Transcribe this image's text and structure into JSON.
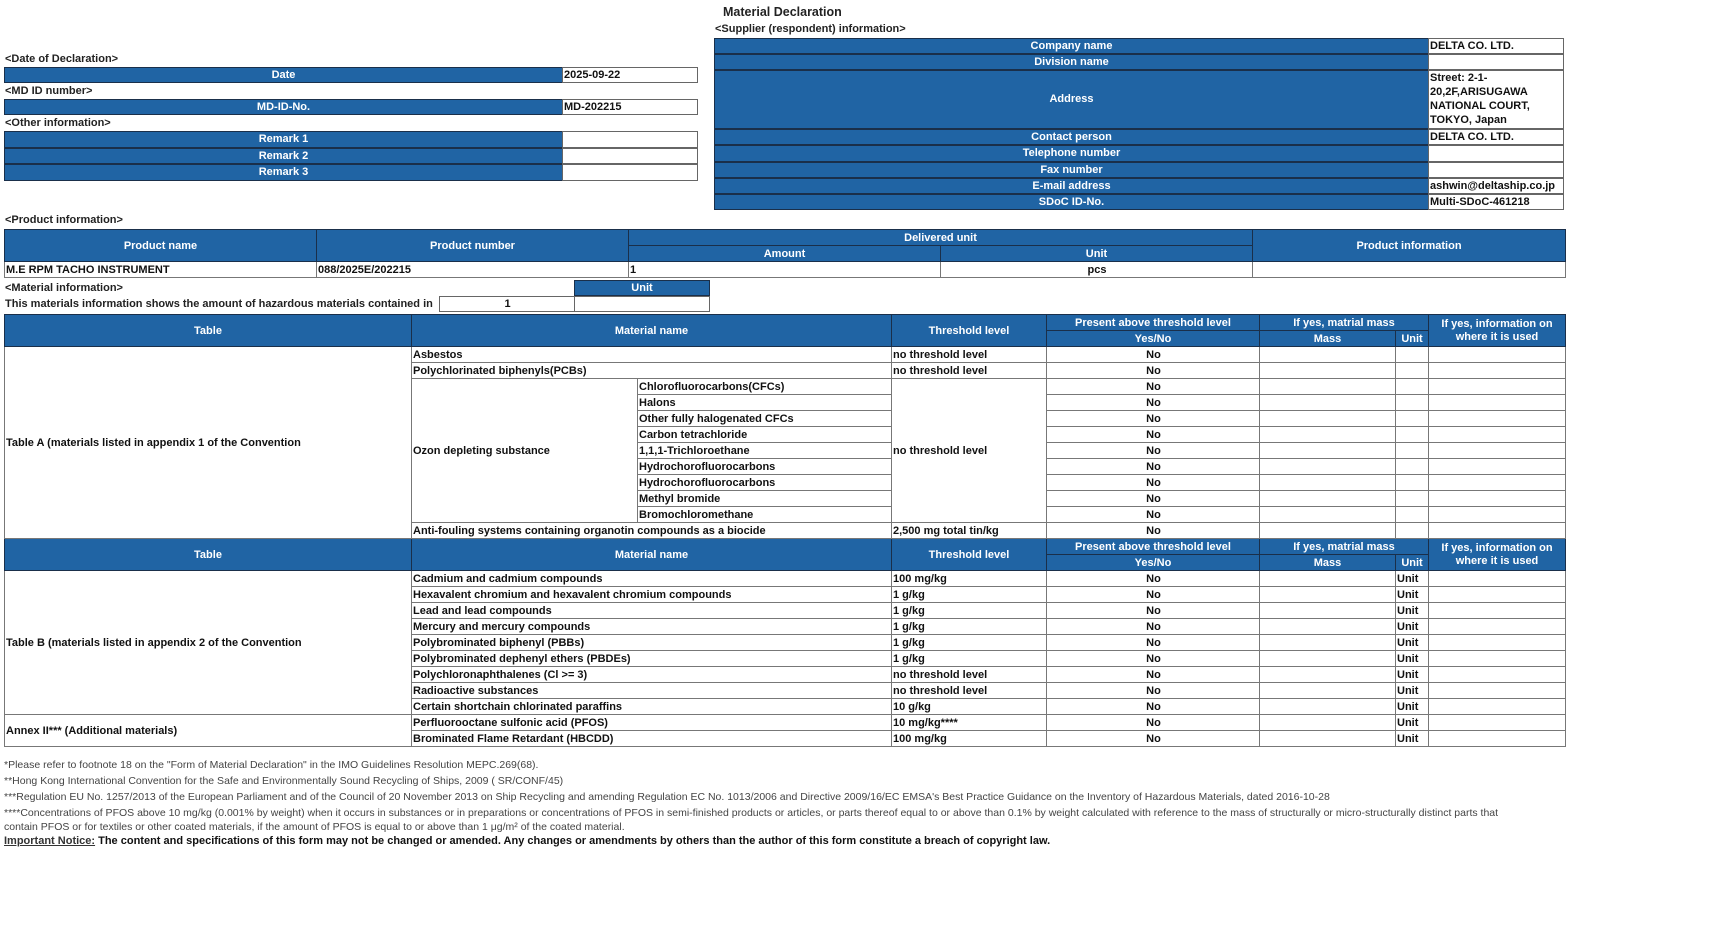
{
  "title": "Material Declaration",
  "supplier": {
    "section_label": "<Supplier (respondent) information>",
    "rows": [
      {
        "label": "Company name",
        "value": "DELTA CO. LTD."
      },
      {
        "label": "Division name",
        "value": ""
      },
      {
        "label": "Address",
        "value": "Street: 2-1-20,2F,ARISUGAWA NATIONAL COURT, TOKYO, Japan"
      },
      {
        "label": "Contact person",
        "value": "DELTA CO. LTD."
      },
      {
        "label": "Telephone number",
        "value": ""
      },
      {
        "label": "Fax number",
        "value": ""
      },
      {
        "label": "E-mail address",
        "value": "ashwin@deltaship.co.jp"
      },
      {
        "label": "SDoC ID-No.",
        "value": "Multi-SDoC-461218"
      }
    ]
  },
  "declaration": {
    "section_label": "<Date of Declaration>",
    "label": "Date",
    "value": "2025-09-22"
  },
  "md_id": {
    "section_label": "<MD ID number>",
    "label": "MD-ID-No.",
    "value": "MD-202215"
  },
  "other": {
    "section_label": "<Other information>",
    "remarks": [
      {
        "label": "Remark 1",
        "value": ""
      },
      {
        "label": "Remark 2",
        "value": ""
      },
      {
        "label": "Remark 3",
        "value": ""
      }
    ]
  },
  "product": {
    "section_label": "<Product information>",
    "headers": {
      "name": "Product name",
      "number": "Product number",
      "delivered": "Delivered unit",
      "amount": "Amount",
      "unit": "Unit",
      "info": "Product information"
    },
    "row": {
      "name": "M.E RPM TACHO INSTRUMENT",
      "number": "088/2025E/202215",
      "amount": "1",
      "unit": "pcs",
      "info": ""
    }
  },
  "material_info": {
    "section_label": "<Material information>",
    "unit_header": "Unit",
    "statement": "This materials information shows the amount of hazardous materials contained in",
    "amount": "1",
    "unit": ""
  },
  "headers": {
    "table": "Table",
    "material": "Material name",
    "threshold": "Threshold level",
    "present": "Present above threshold level",
    "yesno": "Yes/No",
    "ifyes_mass": "If yes, matrial mass",
    "mass": "Mass",
    "unit": "Unit",
    "ifyes_info": "If yes, information on where it is used"
  },
  "table_a": {
    "label": "Table A (materials listed in appendix 1 of the Convention",
    "rows": [
      {
        "name": "Asbestos",
        "threshold": "no threshold level",
        "yesno": "No",
        "unit": ""
      },
      {
        "name": "Polychlorinated biphenyls(PCBs)",
        "threshold": "no threshold level",
        "yesno": "No",
        "unit": ""
      }
    ],
    "ozone": {
      "name": "Ozon depleting substance",
      "threshold": "no threshold level",
      "subs": [
        "Chlorofluorocarbons(CFCs)",
        "Halons",
        "Other fully halogenated CFCs",
        "Carbon tetrachloride",
        "1,1,1-Trichloroethane",
        "Hydrochorofluorocarbons",
        "Hydrochorofluorocarbons",
        "Methyl bromide",
        "Bromochloromethane"
      ],
      "yesno": "No"
    },
    "last": {
      "name": "Anti-fouling systems containing organotin compounds as a biocide",
      "threshold": "2,500 mg total tin/kg",
      "yesno": "No",
      "unit": ""
    }
  },
  "table_b": {
    "label": "Table B (materials listed in appendix 2 of the Convention",
    "rows": [
      {
        "name": "Cadmium and cadmium compounds",
        "threshold": "100 mg/kg",
        "yesno": "No",
        "unit": "Unit"
      },
      {
        "name": "Hexavalent chromium and hexavalent chromium compounds",
        "threshold": "1 g/kg",
        "yesno": "No",
        "unit": "Unit"
      },
      {
        "name": "Lead and lead compounds",
        "threshold": "1 g/kg",
        "yesno": "No",
        "unit": "Unit"
      },
      {
        "name": "Mercury and mercury compounds",
        "threshold": "1 g/kg",
        "yesno": "No",
        "unit": "Unit"
      },
      {
        "name": "Polybrominated biphenyl (PBBs)",
        "threshold": "1 g/kg",
        "yesno": "No",
        "unit": "Unit"
      },
      {
        "name": "Polybrominated dephenyl ethers (PBDEs)",
        "threshold": "1 g/kg",
        "yesno": "No",
        "unit": "Unit"
      },
      {
        "name": "Polychloronaphthalenes (Cl >= 3)",
        "threshold": "no threshold level",
        "yesno": "No",
        "unit": "Unit"
      },
      {
        "name": "Radioactive substances",
        "threshold": "no threshold level",
        "yesno": "No",
        "unit": "Unit"
      },
      {
        "name": "Certain shortchain chlorinated paraffins",
        "threshold": "10 g/kg",
        "yesno": "No",
        "unit": "Unit"
      }
    ]
  },
  "annex": {
    "label": "Annex II*** (Additional materials)",
    "rows": [
      {
        "name": "Perfluorooctane sulfonic acid (PFOS)",
        "threshold": "10 mg/kg****",
        "yesno": "No",
        "unit": "Unit"
      },
      {
        "name": "Brominated Flame Retardant (HBCDD)",
        "threshold": "100 mg/kg",
        "yesno": "No",
        "unit": "Unit"
      }
    ]
  },
  "footnotes": [
    "*Please refer to footnote 18 on the \"Form of Material Declaration\" in the IMO Guidelines Resolution MEPC.269(68).",
    "**Hong Kong International Convention for the Safe and Environmentally Sound Recycling of Ships, 2009 ( SR/CONF/45)",
    "***Regulation EU No. 1257/2013 of the European Parliament and of the Council of 20 November 2013 on Ship Recycling and amending Regulation EC No. 1013/2006 and Directive 2009/16/EC EMSA's Best Practice Guidance on the Inventory of Hazardous Materials, dated 2016-10-28",
    "****Concentrations of PFOS above 10 mg/kg (0.001% by weight) when it occurs in substances or in preparations or concentrations of PFOS in semi-finished products or articles, or parts thereof equal to or above than 0.1% by weight calculated with reference to the mass of structurally or micro-structurally distinct parts that",
    "contain PFOS or for textiles or other coated materials, if the amount of PFOS is equal to or above than 1 μg/m² of the coated material."
  ],
  "notice": {
    "label": "Important Notice:",
    "text": " The content and specifications of this form may not be changed or amended. Any changes or amendments by others than the author of this form constitute a breach of copyright law."
  }
}
